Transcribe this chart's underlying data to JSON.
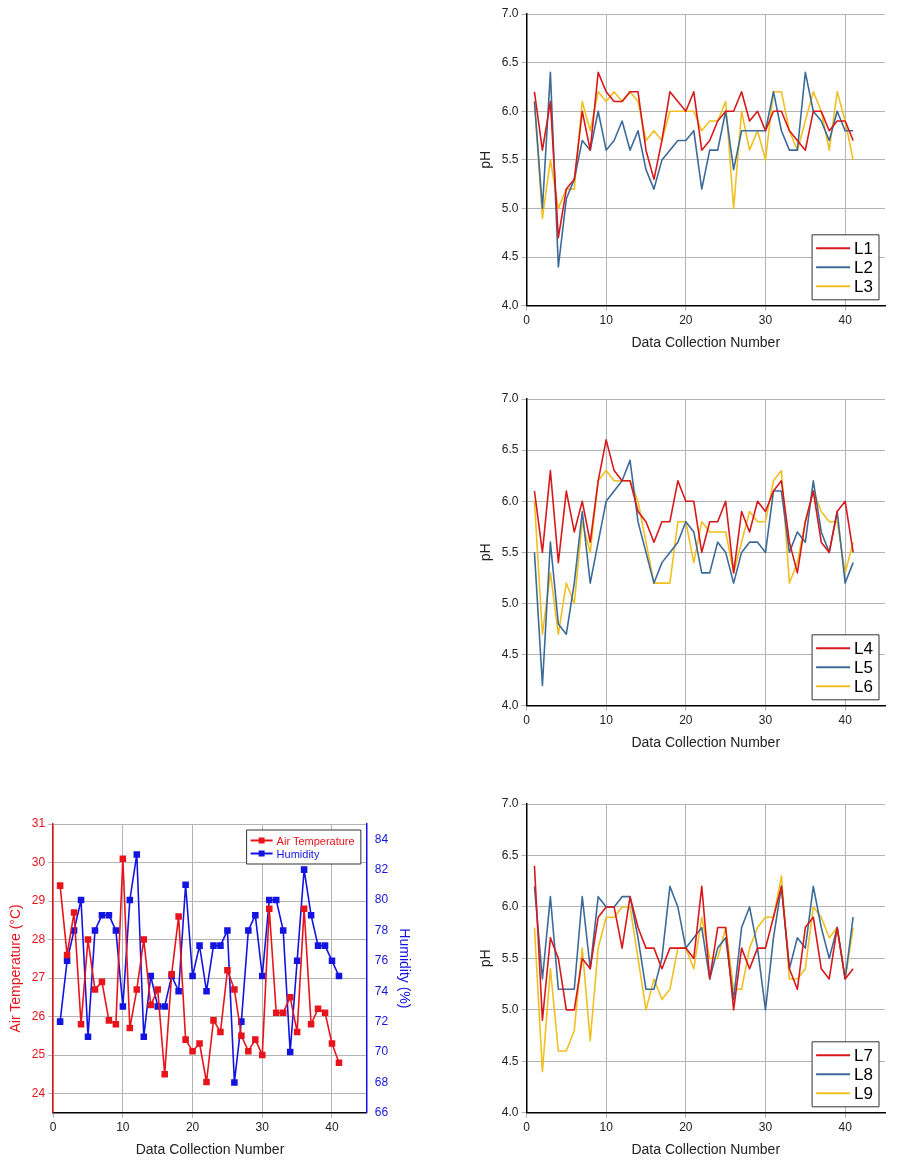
{
  "chart_data": [
    {
      "type": "line",
      "xlabel": "Data Collection Number",
      "ylabel": "pH",
      "x": [
        1,
        2,
        3,
        4,
        5,
        6,
        7,
        8,
        9,
        10,
        11,
        12,
        13,
        14,
        15,
        16,
        17,
        18,
        19,
        20,
        21,
        22,
        23,
        24,
        25,
        26,
        27,
        28,
        29,
        30,
        31,
        32,
        33,
        34,
        35,
        36,
        37,
        38,
        39,
        40,
        41
      ],
      "xlim": [
        0,
        45
      ],
      "xticks": [
        0,
        10,
        20,
        30,
        40
      ],
      "ylim": [
        4,
        7
      ],
      "yticks": [
        {
          "value": 4,
          "label": "4.0"
        },
        {
          "value": 4.5,
          "label": "4.5"
        },
        {
          "value": 5,
          "label": "5.0"
        },
        {
          "value": 5.5,
          "label": "5.5"
        },
        {
          "value": 6,
          "label": "6.0"
        },
        {
          "value": 6.5,
          "label": "6.5"
        },
        {
          "value": 7,
          "label": "7.0"
        }
      ],
      "grid": true,
      "legend": "bottom right",
      "marker": "none",
      "line_style": "solid",
      "series": [
        {
          "name": "L1",
          "color": "#d7191c",
          "values": [
            6.2,
            5.6,
            6.1,
            4.7,
            5.2,
            5.3,
            6.0,
            5.6,
            6.4,
            6.2,
            6.1,
            6.1,
            6.2,
            6.2,
            5.6,
            5.3,
            5.7,
            6.2,
            6.1,
            6.0,
            6.2,
            5.6,
            5.7,
            5.9,
            6.0,
            6.0,
            6.2,
            5.9,
            6.0,
            5.8,
            6.0,
            6.0,
            5.8,
            5.7,
            5.6,
            6.0,
            6.0,
            5.8,
            5.9,
            5.9,
            5.7
          ]
        },
        {
          "name": "L2",
          "color": "#3d6b99",
          "values": [
            6.1,
            5.0,
            6.4,
            4.4,
            5.1,
            5.3,
            5.7,
            5.6,
            6.0,
            5.6,
            5.7,
            5.9,
            5.6,
            5.8,
            5.4,
            5.2,
            5.5,
            5.6,
            5.7,
            5.7,
            5.8,
            5.2,
            5.6,
            5.6,
            6.0,
            5.4,
            5.8,
            5.8,
            5.8,
            5.8,
            6.2,
            5.8,
            5.6,
            5.6,
            6.4,
            6.0,
            5.9,
            5.7,
            6.0,
            5.8,
            5.8
          ]
        },
        {
          "name": "L3",
          "color": "#f0c020",
          "values": [
            6.1,
            4.9,
            5.5,
            5.0,
            5.2,
            5.2,
            6.1,
            5.8,
            6.2,
            6.1,
            6.2,
            6.1,
            6.2,
            6.1,
            5.7,
            5.8,
            5.7,
            6.0,
            6.0,
            6.0,
            6.0,
            5.8,
            5.9,
            5.9,
            6.1,
            5.0,
            6.0,
            5.6,
            5.8,
            5.5,
            6.2,
            6.2,
            5.8,
            5.6,
            5.9,
            6.2,
            6.0,
            5.6,
            6.2,
            5.9,
            5.5
          ]
        }
      ]
    },
    {
      "type": "line",
      "xlabel": "Data Collection Number",
      "ylabel": "pH",
      "x": [
        1,
        2,
        3,
        4,
        5,
        6,
        7,
        8,
        9,
        10,
        11,
        12,
        13,
        14,
        15,
        16,
        17,
        18,
        19,
        20,
        21,
        22,
        23,
        24,
        25,
        26,
        27,
        28,
        29,
        30,
        31,
        32,
        33,
        34,
        35,
        36,
        37,
        38,
        39,
        40,
        41
      ],
      "xlim": [
        0,
        45
      ],
      "xticks": [
        0,
        10,
        20,
        30,
        40
      ],
      "ylim": [
        4,
        7
      ],
      "yticks": [
        {
          "value": 4,
          "label": "4.0"
        },
        {
          "value": 4.5,
          "label": "4.5"
        },
        {
          "value": 5,
          "label": "5.0"
        },
        {
          "value": 5.5,
          "label": "5.5"
        },
        {
          "value": 6,
          "label": "6.0"
        },
        {
          "value": 6.5,
          "label": "6.5"
        },
        {
          "value": 7,
          "label": "7.0"
        }
      ],
      "grid": true,
      "legend": "bottom right",
      "marker": "none",
      "line_style": "solid",
      "series": [
        {
          "name": "L4",
          "color": "#d7191c",
          "values": [
            6.1,
            5.5,
            6.3,
            5.4,
            6.1,
            5.7,
            6.0,
            5.6,
            6.2,
            6.6,
            6.3,
            6.2,
            6.2,
            5.9,
            5.8,
            5.6,
            5.8,
            5.8,
            6.2,
            6.0,
            6.0,
            5.5,
            5.8,
            5.8,
            6.0,
            5.3,
            5.9,
            5.7,
            6.0,
            5.9,
            6.1,
            6.2,
            5.6,
            5.3,
            5.8,
            6.1,
            5.6,
            5.5,
            5.9,
            6.0,
            5.5
          ]
        },
        {
          "name": "L5",
          "color": "#3d6b99",
          "values": [
            5.5,
            4.2,
            5.6,
            4.8,
            4.7,
            5.2,
            5.9,
            5.2,
            5.6,
            6.0,
            6.1,
            6.2,
            6.4,
            5.8,
            5.5,
            5.2,
            5.4,
            5.5,
            5.6,
            5.8,
            5.7,
            5.3,
            5.3,
            5.6,
            5.5,
            5.2,
            5.5,
            5.6,
            5.6,
            5.5,
            6.1,
            6.1,
            5.5,
            5.7,
            5.6,
            6.2,
            5.7,
            5.5,
            5.9,
            5.2,
            5.4
          ]
        },
        {
          "name": "L6",
          "color": "#f0c020",
          "values": [
            6.0,
            4.7,
            5.3,
            4.7,
            5.2,
            5.0,
            5.8,
            5.5,
            6.2,
            6.3,
            6.2,
            6.2,
            6.2,
            6.0,
            5.6,
            5.2,
            5.2,
            5.2,
            5.8,
            5.8,
            5.4,
            5.8,
            5.7,
            5.7,
            5.7,
            5.3,
            5.6,
            5.9,
            5.8,
            5.8,
            6.2,
            6.3,
            5.2,
            5.4,
            5.8,
            6.1,
            5.9,
            5.8,
            5.8,
            5.3,
            5.6
          ]
        }
      ]
    },
    {
      "type": "line",
      "xlabel": "Data Collection Number",
      "ylabel": "Air Temperature (°C)",
      "y2label": "Humidity (%)",
      "x": [
        1,
        2,
        3,
        4,
        5,
        6,
        7,
        8,
        9,
        10,
        11,
        12,
        13,
        14,
        15,
        16,
        17,
        18,
        19,
        20,
        21,
        22,
        23,
        24,
        25,
        26,
        27,
        28,
        29,
        30,
        31,
        32,
        33,
        34,
        35,
        36,
        37,
        38,
        39,
        40,
        41
      ],
      "xlim": [
        0,
        45
      ],
      "xticks": [
        0,
        10,
        20,
        30,
        40
      ],
      "ylim": [
        23.5,
        31
      ],
      "yticks": [
        24,
        25,
        26,
        27,
        28,
        29,
        30,
        31
      ],
      "y2lim": [
        66,
        85
      ],
      "y2ticks": [
        66,
        68,
        70,
        72,
        74,
        76,
        78,
        80,
        82,
        84
      ],
      "grid": true,
      "legend": "top right",
      "marker": "square",
      "line_style": "solid",
      "series": [
        {
          "name": "Air Temperature",
          "color": "#e8141c",
          "values": [
            29.4,
            27.6,
            28.7,
            25.8,
            28.0,
            26.7,
            26.9,
            25.9,
            25.8,
            30.1,
            25.7,
            26.7,
            28.0,
            26.3,
            26.7,
            24.5,
            27.1,
            28.6,
            25.4,
            25.1,
            25.3,
            24.3,
            25.9,
            25.6,
            27.2,
            26.7,
            25.5,
            25.1,
            25.4,
            25.0,
            28.8,
            26.1,
            26.1,
            26.5,
            25.6,
            28.8,
            25.8,
            26.2,
            26.1,
            25.3,
            24.8
          ]
        },
        {
          "name": "Humidity",
          "color": "#1414e0",
          "axis": "y2",
          "values": [
            72,
            76,
            78,
            80,
            71,
            78,
            79,
            79,
            78,
            73,
            80,
            83,
            71,
            75,
            73,
            73,
            75,
            74,
            81,
            75,
            77,
            74,
            77,
            77,
            78,
            68,
            72,
            78,
            79,
            75,
            80,
            80,
            78,
            70,
            76,
            82,
            79,
            77,
            77,
            76,
            75
          ]
        }
      ]
    },
    {
      "type": "line",
      "xlabel": "Data Collection Number",
      "ylabel": "pH",
      "x": [
        1,
        2,
        3,
        4,
        5,
        6,
        7,
        8,
        9,
        10,
        11,
        12,
        13,
        14,
        15,
        16,
        17,
        18,
        19,
        20,
        21,
        22,
        23,
        24,
        25,
        26,
        27,
        28,
        29,
        30,
        31,
        32,
        33,
        34,
        35,
        36,
        37,
        38,
        39,
        40,
        41
      ],
      "xlim": [
        0,
        45
      ],
      "xticks": [
        0,
        10,
        20,
        30,
        40
      ],
      "ylim": [
        4,
        7
      ],
      "yticks": [
        {
          "value": 4,
          "label": "4.0"
        },
        {
          "value": 4.5,
          "label": "4.5"
        },
        {
          "value": 5,
          "label": "5.0"
        },
        {
          "value": 5.5,
          "label": "5.5"
        },
        {
          "value": 6,
          "label": "6.0"
        },
        {
          "value": 6.5,
          "label": "6.5"
        },
        {
          "value": 7,
          "label": "7.0"
        }
      ],
      "grid": true,
      "legend": "bottom right",
      "marker": "none",
      "line_style": "solid",
      "series": [
        {
          "name": "L7",
          "color": "#d7191c",
          "values": [
            6.4,
            4.9,
            5.7,
            5.5,
            5.0,
            5.0,
            5.5,
            5.4,
            5.9,
            6.0,
            6.0,
            5.6,
            6.1,
            5.8,
            5.6,
            5.6,
            5.4,
            5.6,
            5.6,
            5.6,
            5.5,
            6.2,
            5.3,
            5.8,
            5.8,
            5.0,
            5.6,
            5.4,
            5.6,
            5.6,
            5.9,
            6.2,
            5.4,
            5.2,
            5.8,
            5.9,
            5.4,
            5.3,
            5.8,
            5.3,
            5.4
          ]
        },
        {
          "name": "L8",
          "color": "#3d6b99",
          "values": [
            6.2,
            5.3,
            6.1,
            5.2,
            5.2,
            5.2,
            6.1,
            5.4,
            6.1,
            6.0,
            6.0,
            6.1,
            6.1,
            5.7,
            5.2,
            5.2,
            5.5,
            6.2,
            6.0,
            5.6,
            5.7,
            5.8,
            5.3,
            5.6,
            5.7,
            5.1,
            5.8,
            6.0,
            5.6,
            5.0,
            5.7,
            6.2,
            5.4,
            5.7,
            5.6,
            6.2,
            5.8,
            5.5,
            5.8,
            5.3,
            5.9
          ]
        },
        {
          "name": "L9",
          "color": "#f0c020",
          "values": [
            5.8,
            4.4,
            5.4,
            4.6,
            4.6,
            4.8,
            5.6,
            4.7,
            5.6,
            5.9,
            5.9,
            6.0,
            6.0,
            5.5,
            5.0,
            5.3,
            5.1,
            5.2,
            5.6,
            5.6,
            5.4,
            5.9,
            5.5,
            5.5,
            5.8,
            5.2,
            5.2,
            5.6,
            5.8,
            5.9,
            5.9,
            6.3,
            5.3,
            5.3,
            5.4,
            6.0,
            5.9,
            5.7,
            5.8,
            5.3,
            5.8
          ]
        }
      ]
    }
  ]
}
